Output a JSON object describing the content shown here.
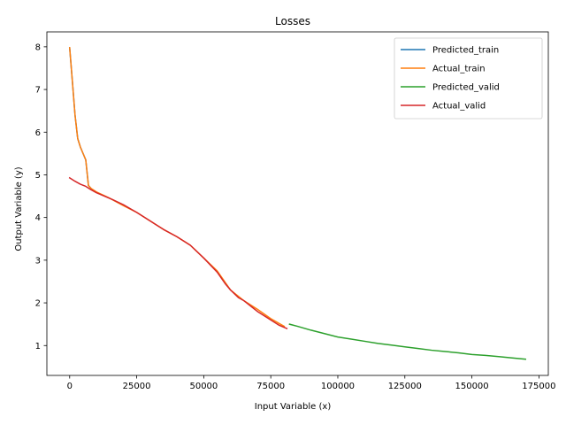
{
  "chart_data": {
    "type": "line",
    "title": "Losses",
    "xlabel": "Input Variable (x)",
    "ylabel": "Output Variable (y)",
    "xlim": [
      -8500,
      178500
    ],
    "ylim": [
      0.3,
      8.35
    ],
    "xticks": [
      0,
      25000,
      50000,
      75000,
      100000,
      125000,
      150000,
      175000
    ],
    "yticks": [
      1,
      2,
      3,
      4,
      5,
      6,
      7,
      8
    ],
    "grid": false,
    "legend_position": "top-right",
    "series": [
      {
        "name": "Predicted_train",
        "color": "#1f77b4",
        "x": [
          0,
          1000,
          2000,
          3000,
          4000,
          5000,
          6000,
          7000,
          8000
        ],
        "y": [
          7.98,
          7.2,
          6.4,
          5.85,
          5.65,
          5.5,
          5.35,
          4.75,
          4.68
        ]
      },
      {
        "name": "Actual_train",
        "color": "#ff7f0e",
        "x": [
          0,
          1000,
          2000,
          3000,
          4000,
          5000,
          6000,
          7000,
          8000,
          10000,
          15000,
          20000,
          25000,
          30000,
          35000,
          40000,
          45000,
          50000,
          55000,
          60000,
          65000,
          70000,
          75000,
          80000
        ],
        "y": [
          7.98,
          7.2,
          6.4,
          5.85,
          5.65,
          5.5,
          5.35,
          4.75,
          4.68,
          4.6,
          4.45,
          4.28,
          4.12,
          3.92,
          3.72,
          3.55,
          3.35,
          3.05,
          2.75,
          2.3,
          2.05,
          1.85,
          1.63,
          1.45
        ]
      },
      {
        "name": "Predicted_valid",
        "color": "#2ca02c",
        "x": [
          82000,
          85000,
          90000,
          95000,
          100000,
          105000,
          110000,
          115000,
          120000,
          125000,
          130000,
          135000,
          140000,
          145000,
          150000,
          155000,
          160000,
          165000,
          170000
        ],
        "y": [
          1.5,
          1.45,
          1.36,
          1.28,
          1.2,
          1.15,
          1.1,
          1.05,
          1.01,
          0.97,
          0.93,
          0.89,
          0.86,
          0.83,
          0.79,
          0.77,
          0.74,
          0.71,
          0.68
        ]
      },
      {
        "name": "Actual_valid",
        "color": "#d62728",
        "x": [
          0,
          2000,
          4000,
          6000,
          8000,
          10000,
          13000,
          16000,
          20000,
          25000,
          30000,
          35000,
          40000,
          45000,
          50000,
          55000,
          58000,
          60000,
          63000,
          65000,
          68000,
          70000,
          73000,
          75000,
          78000,
          81000
        ],
        "y": [
          4.93,
          4.85,
          4.78,
          4.73,
          4.65,
          4.58,
          4.5,
          4.42,
          4.3,
          4.12,
          3.92,
          3.72,
          3.55,
          3.35,
          3.05,
          2.72,
          2.45,
          2.3,
          2.12,
          2.05,
          1.9,
          1.8,
          1.68,
          1.6,
          1.48,
          1.4
        ]
      }
    ]
  }
}
